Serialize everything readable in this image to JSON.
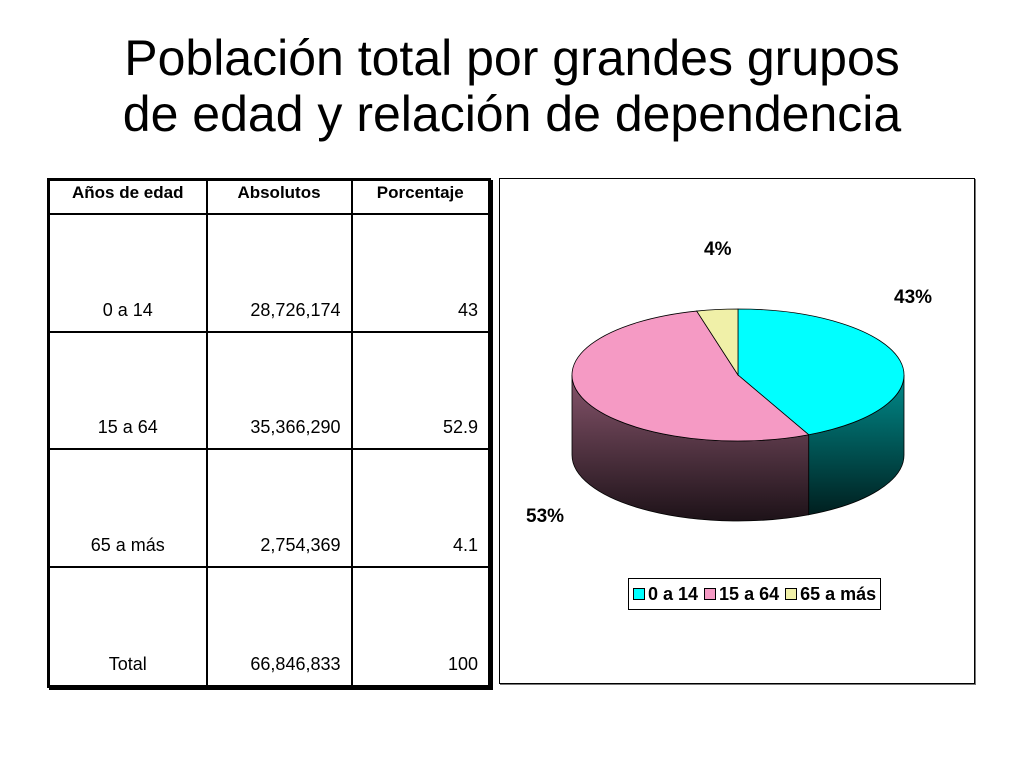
{
  "title": {
    "line1": "Población total por grandes grupos",
    "line2": "de edad y relación de dependencia"
  },
  "table": {
    "headers": [
      "Años de edad",
      "Absolutos",
      "Porcentaje"
    ],
    "rows": [
      [
        "0 a 14",
        "28,726,174",
        "43"
      ],
      [
        "15 a 64",
        "35,366,290",
        "52.9"
      ],
      [
        "65 a más",
        "2,754,369",
        "4.1"
      ],
      [
        "Total",
        "66,846,833",
        "100"
      ]
    ]
  },
  "chart_data": {
    "type": "pie",
    "title": "",
    "categories": [
      "0 a 14",
      "15 a 64",
      "65 a más"
    ],
    "values": [
      43,
      53,
      4
    ],
    "data_labels": [
      "43%",
      "53%",
      "4%"
    ],
    "colors": [
      "#00ffff",
      "#f59ac4",
      "#f0f0a8"
    ],
    "legend_position": "bottom",
    "style": "3d"
  }
}
